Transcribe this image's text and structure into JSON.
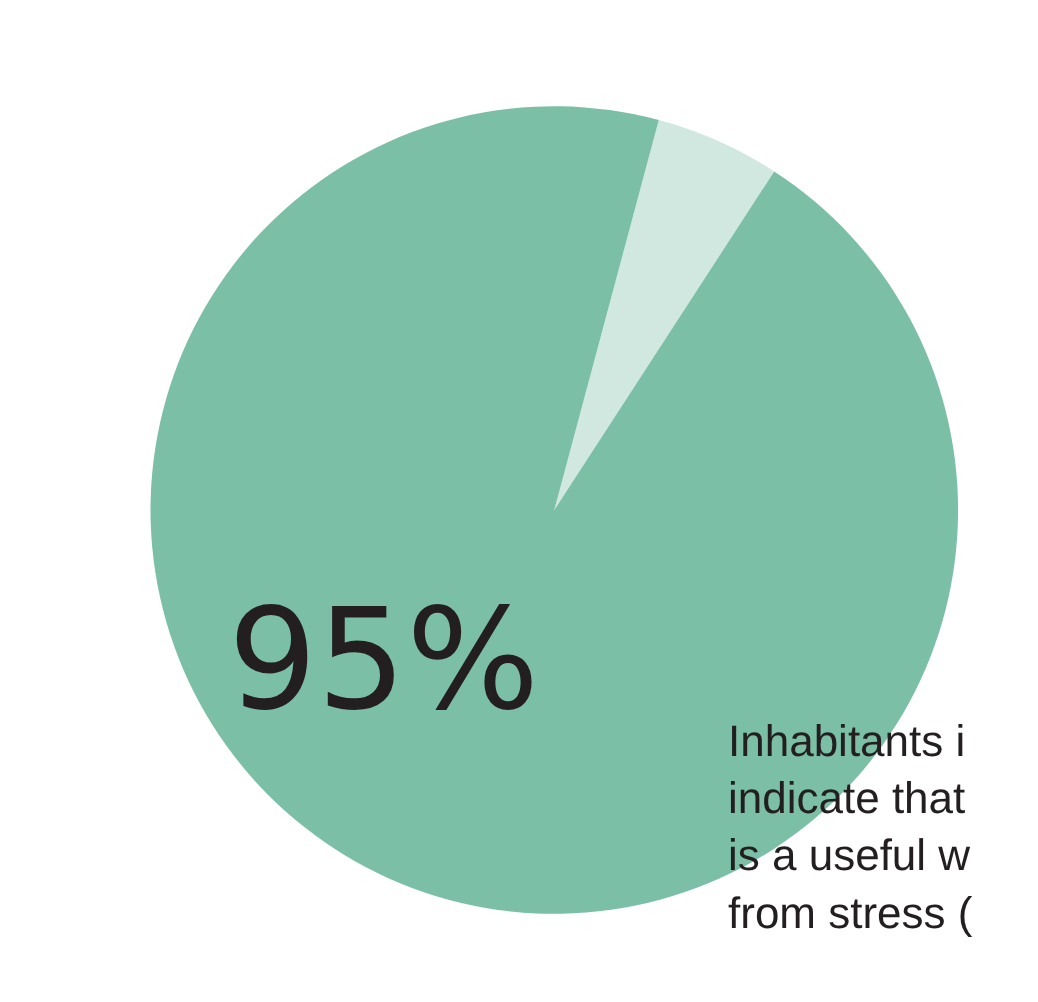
{
  "chart_data": {
    "type": "pie",
    "categories": [
      null,
      null
    ],
    "values": [
      5,
      95
    ],
    "colors": [
      "#d0e8e0",
      "#7bbfa6"
    ],
    "annotations": [
      "95%",
      "Inhabitants i\nindicate that\nis a useful w\nfrom stress ("
    ],
    "legend": false
  }
}
